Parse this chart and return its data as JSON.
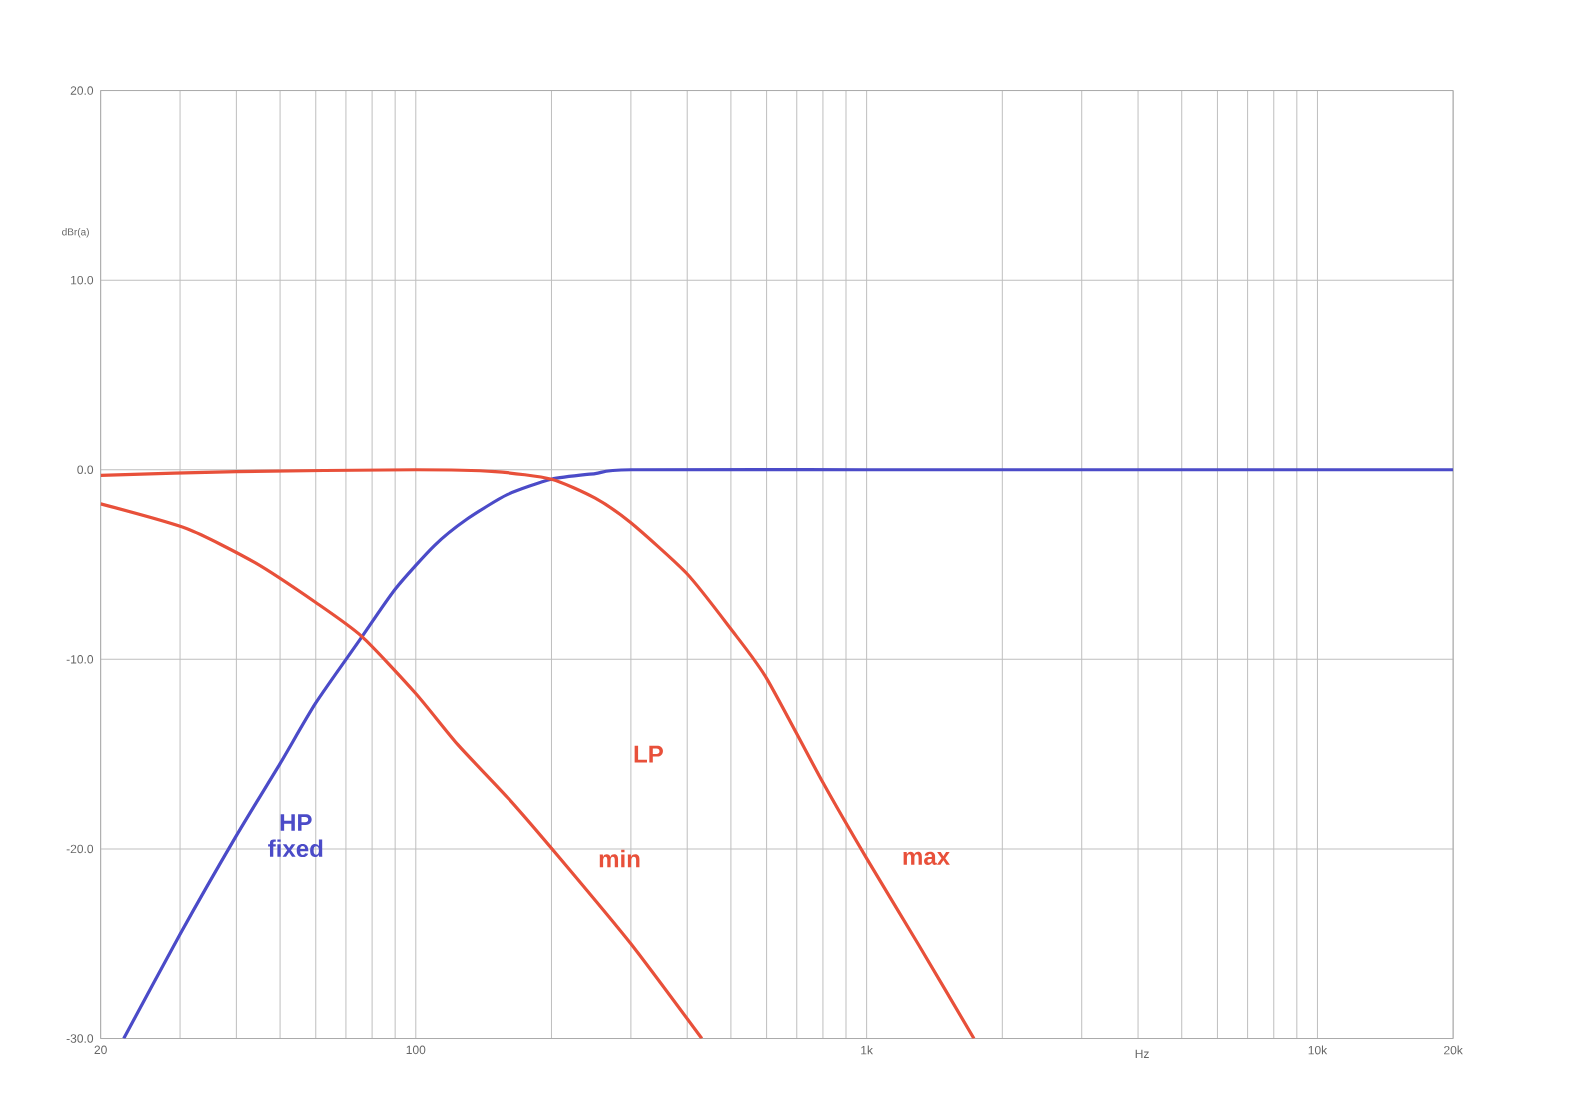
{
  "chart_data": {
    "type": "line",
    "xlabel": "Hz",
    "ylabel": "dBr(a)",
    "log": "x",
    "grid": true,
    "xlim": [
      20,
      20000
    ],
    "ylim": [
      -30,
      20
    ],
    "xticks": [
      20,
      100,
      {
        "value": 1000,
        "label": "1k"
      },
      {
        "value": 10000,
        "label": "10k"
      },
      {
        "value": 20000,
        "label": "20k"
      }
    ],
    "yticks": [
      {
        "value": -30,
        "label": "-30.0"
      },
      {
        "value": -20,
        "label": "-20.0"
      },
      {
        "value": -10,
        "label": "-10.0"
      },
      {
        "value": 0,
        "label": "0.0"
      },
      {
        "value": 10,
        "label": "10.0"
      },
      {
        "value": 20,
        "label": "20.0"
      }
    ],
    "series": [
      {
        "name": "HP fixed",
        "color": "#4b4bc8",
        "x": [
          22.5,
          30,
          40,
          50,
          60,
          75,
          90,
          110,
          130,
          160,
          200,
          250,
          300,
          1000,
          20000
        ],
        "values": [
          -30,
          -24.5,
          -19.3,
          -15.5,
          -12.3,
          -9,
          -6.3,
          -4,
          -2.6,
          -1.3,
          -0.5,
          -0.2,
          0,
          0,
          0
        ]
      },
      {
        "name": "min",
        "color": "#e8503a",
        "x": [
          20,
          31,
          44,
          60,
          76,
          100,
          124,
          160,
          209,
          300,
          431
        ],
        "values": [
          -1.8,
          -3.1,
          -4.9,
          -7,
          -8.8,
          -11.8,
          -14.5,
          -17.3,
          -20.5,
          -25,
          -30
        ]
      },
      {
        "name": "max",
        "color": "#e8503a",
        "x": [
          20,
          40,
          100,
          150,
          200,
          250,
          300,
          400,
          500,
          600,
          800,
          1000,
          1300,
          1730
        ],
        "values": [
          -0.3,
          -0.1,
          0,
          -0.1,
          -0.5,
          -1.5,
          -2.8,
          -5.5,
          -8.4,
          -11,
          -16.5,
          -20.5,
          -25,
          -30
        ]
      }
    ],
    "annotations": [
      "LP"
    ]
  }
}
